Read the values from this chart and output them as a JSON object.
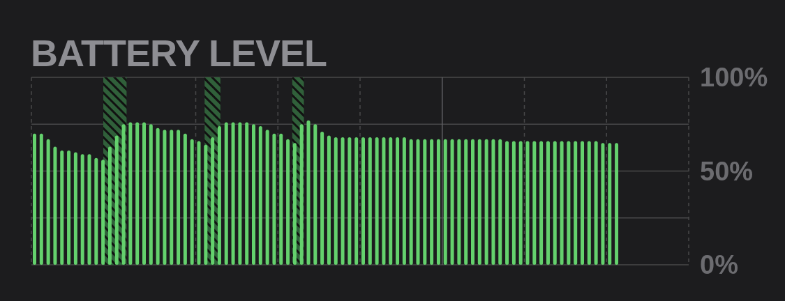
{
  "chart_data": {
    "type": "bar",
    "title": "BATTERY LEVEL",
    "categories": [
      null,
      null,
      null,
      null,
      null,
      null,
      null,
      null,
      null,
      null,
      null,
      null,
      null,
      null,
      null,
      null,
      null,
      null,
      null,
      null,
      null,
      null,
      null,
      null,
      null,
      null,
      null,
      null,
      null,
      null,
      null,
      null,
      null,
      null,
      null,
      null,
      null,
      null,
      null,
      null,
      null,
      null,
      null,
      null,
      null,
      null,
      null,
      null,
      null,
      null,
      null,
      null,
      null,
      null,
      null,
      null,
      null,
      null,
      null,
      null,
      null,
      null,
      null,
      null,
      null,
      null,
      null,
      null,
      null,
      null,
      null,
      null,
      null,
      null,
      null,
      null,
      null,
      null,
      null,
      null,
      null,
      null,
      null,
      null,
      null,
      null,
      null,
      null,
      null,
      null,
      null,
      null,
      null,
      null,
      null,
      null
    ],
    "values": [
      70,
      70,
      67,
      63,
      61,
      61,
      60,
      59,
      59,
      57,
      56,
      63,
      69,
      75,
      76,
      76,
      76,
      75,
      73,
      72,
      72,
      72,
      70,
      67,
      66,
      64,
      68,
      74,
      76,
      76,
      76,
      76,
      75,
      74,
      72,
      70,
      70,
      67,
      65,
      75,
      77,
      75,
      71,
      69,
      68,
      68,
      68,
      68,
      68,
      68,
      68,
      68,
      68,
      68,
      68,
      67,
      67,
      67,
      67,
      67,
      67,
      67,
      67,
      67,
      67,
      67,
      67,
      67,
      67,
      66,
      66,
      66,
      66,
      66,
      66,
      66,
      66,
      66,
      66,
      66,
      66,
      66,
      66,
      65,
      65,
      65,
      null,
      null,
      null,
      null,
      null,
      null,
      null,
      null,
      null,
      null
    ],
    "color": "#64d16d",
    "ylim": [
      0,
      100
    ],
    "yticks": [
      {
        "value": 0,
        "label": "0%"
      },
      {
        "value": 25,
        "label": null
      },
      {
        "value": 50,
        "label": "50%"
      },
      {
        "value": 75,
        "label": null
      },
      {
        "value": 100,
        "label": "100%"
      }
    ],
    "grid": true,
    "tick_labels": "y"
  }
}
